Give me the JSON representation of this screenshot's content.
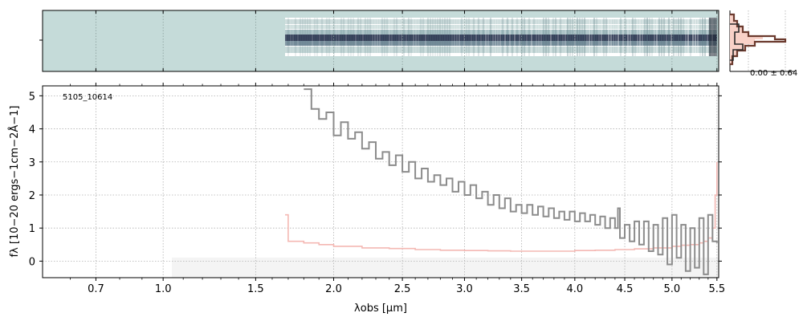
{
  "chart_data": {
    "type": "line",
    "object_label": "5105_10614",
    "xlabel": "λobs [μm]",
    "ylabel": "fλ [10−20 ergs−1cm−2Å−1]",
    "x_scale": "sqrt",
    "xlim": [
      0.5,
      5.52
    ],
    "ylim": [
      -0.5,
      5.3
    ],
    "x_ticks": [
      0.7,
      1.0,
      1.5,
      2.0,
      2.5,
      3.0,
      3.5,
      4.0,
      4.5,
      5.0,
      5.5
    ],
    "x_tick_labels": [
      "0.7",
      "1.0",
      "1.5",
      "2.0",
      "2.5",
      "3.0",
      "3.5",
      "4.0",
      "4.5",
      "5.0",
      "5.5"
    ],
    "y_ticks": [
      0,
      1,
      2,
      3,
      4,
      5
    ],
    "y_tick_labels": [
      "0",
      "1",
      "2",
      "3",
      "4",
      "5"
    ],
    "grid": true,
    "series": [
      {
        "role": "flux",
        "color": "#8c8c8c",
        "x": [
          1.8,
          1.85,
          1.9,
          1.95,
          2.0,
          2.05,
          2.1,
          2.15,
          2.2,
          2.25,
          2.3,
          2.35,
          2.4,
          2.45,
          2.5,
          2.55,
          2.6,
          2.65,
          2.7,
          2.75,
          2.8,
          2.85,
          2.9,
          2.95,
          3.0,
          3.05,
          3.1,
          3.15,
          3.2,
          3.25,
          3.3,
          3.35,
          3.4,
          3.45,
          3.5,
          3.55,
          3.6,
          3.65,
          3.7,
          3.75,
          3.8,
          3.85,
          3.9,
          3.95,
          4.0,
          4.05,
          4.1,
          4.15,
          4.2,
          4.25,
          4.3,
          4.35,
          4.4,
          4.43,
          4.45,
          4.5,
          4.55,
          4.6,
          4.65,
          4.7,
          4.75,
          4.8,
          4.85,
          4.9,
          4.95,
          5.0,
          5.05,
          5.1,
          5.15,
          5.2,
          5.25,
          5.3,
          5.35,
          5.4,
          5.45,
          5.5
        ],
        "y": [
          5.2,
          4.6,
          4.3,
          4.5,
          3.8,
          4.2,
          3.7,
          3.9,
          3.4,
          3.6,
          3.1,
          3.3,
          2.9,
          3.2,
          2.7,
          3.0,
          2.5,
          2.8,
          2.4,
          2.6,
          2.3,
          2.5,
          2.1,
          2.4,
          2.0,
          2.3,
          1.9,
          2.1,
          1.7,
          2.0,
          1.6,
          1.9,
          1.5,
          1.7,
          1.45,
          1.7,
          1.4,
          1.65,
          1.35,
          1.6,
          1.3,
          1.5,
          1.25,
          1.5,
          1.2,
          1.45,
          1.2,
          1.4,
          1.1,
          1.35,
          1.0,
          1.3,
          1.0,
          1.6,
          0.7,
          1.1,
          0.6,
          1.2,
          0.5,
          1.2,
          0.3,
          1.1,
          0.2,
          1.3,
          -0.1,
          1.4,
          0.1,
          1.1,
          -0.3,
          1.0,
          -0.2,
          1.3,
          -0.4,
          1.4,
          0.6,
          0.55
        ]
      },
      {
        "role": "error",
        "color": "#f4b8b3",
        "x": [
          1.68,
          1.7,
          1.8,
          1.9,
          2.0,
          2.2,
          2.4,
          2.6,
          2.8,
          3.0,
          3.2,
          3.4,
          3.6,
          3.8,
          4.0,
          4.2,
          4.4,
          4.6,
          4.8,
          5.0,
          5.1,
          5.2,
          5.3,
          5.35,
          5.4,
          5.45,
          5.48,
          5.5
        ],
        "y": [
          1.4,
          0.6,
          0.55,
          0.5,
          0.45,
          0.4,
          0.38,
          0.35,
          0.33,
          0.32,
          0.31,
          0.3,
          0.3,
          0.3,
          0.32,
          0.33,
          0.35,
          0.37,
          0.4,
          0.45,
          0.48,
          0.5,
          0.55,
          0.6,
          0.7,
          1.0,
          2.0,
          3.0
        ]
      }
    ],
    "sidebar_histogram": {
      "label": "0.00 ± 0.64"
    }
  }
}
